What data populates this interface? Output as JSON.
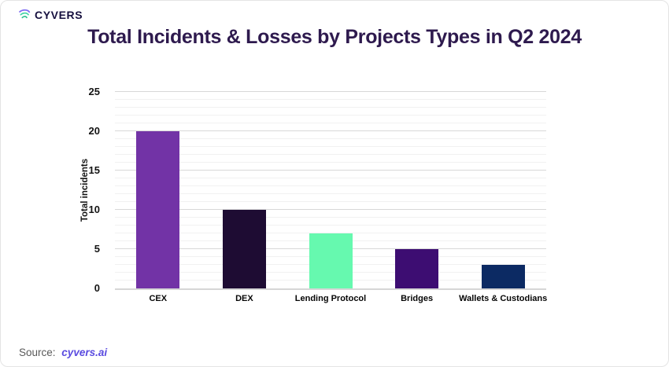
{
  "logo": {
    "text": "CYVERS",
    "icon": "cyvers-swirl-icon"
  },
  "title": "Total Incidents & Losses by Projects Types in Q2 2024",
  "source": {
    "label": "Source:",
    "link": "cyvers.ai",
    "link_color": "#5a4be0"
  },
  "chart_data": {
    "type": "bar",
    "title": "Total Incidents & Losses by Projects Types in Q2 2024",
    "categories": [
      "CEX",
      "DEX",
      "Lending Protocol",
      "Bridges",
      "Wallets & Custodians"
    ],
    "values": [
      20,
      10,
      7,
      5,
      3
    ],
    "colors": [
      "#7233A6",
      "#1E0C33",
      "#66F9AF",
      "#3D0D72",
      "#0C2A63"
    ],
    "xlabel": "",
    "ylabel": "Total incidents",
    "ylim": [
      0,
      25
    ],
    "yticks": [
      0,
      5,
      10,
      15,
      20,
      25
    ],
    "minor_grid_step": 1,
    "major_grid_step": 5,
    "grid": true,
    "legend": false
  }
}
